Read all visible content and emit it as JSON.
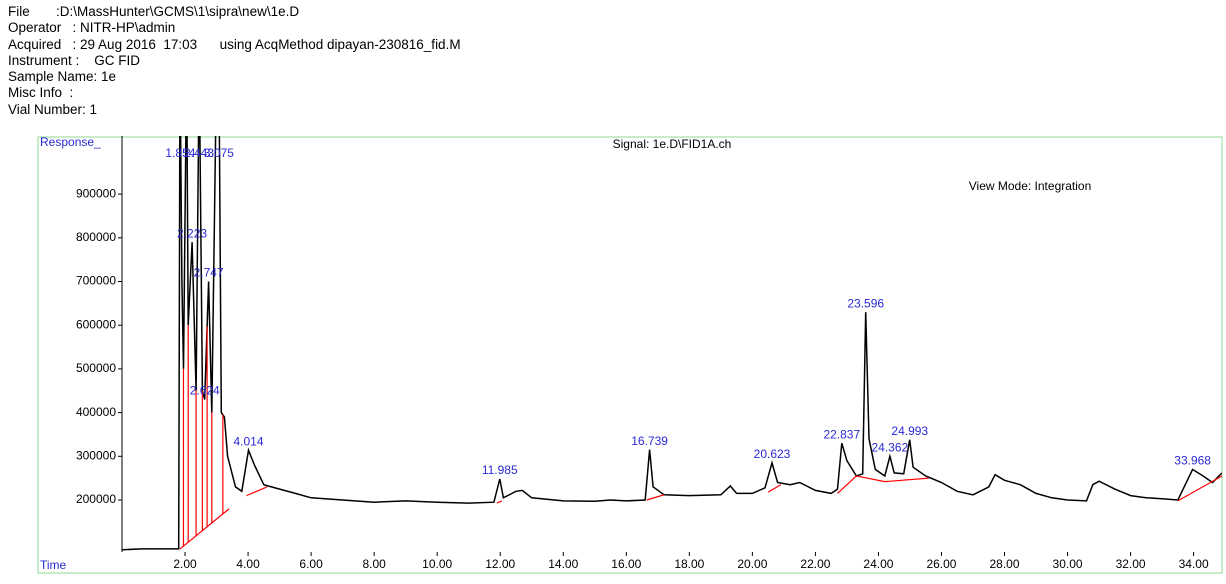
{
  "header": {
    "lines": [
      "File       :D:\\MassHunter\\GCMS\\1\\sipra\\new\\1e.D",
      "Operator   : NITR-HP\\admin",
      "Acquired   : 29 Aug 2016  17:03      using AcqMethod dipayan-230816_fid.M",
      "Instrument :    GC FID",
      "Sample Name: 1e",
      "Misc Info  :",
      "Vial Number: 1"
    ]
  },
  "chart_data": {
    "type": "line",
    "title": "Signal: 1e.D\\FID1A.ch",
    "annotation": "View Mode: Integration",
    "y_label": "Response_",
    "x_label": "Time",
    "color": "#000000",
    "baseline_color": "#ff0000",
    "label_color": "#2a2ad4",
    "xlim": [
      0,
      34.9
    ],
    "ylim": [
      81000,
      1033000
    ],
    "xticks": [
      {
        "value": 2,
        "label": "2.00"
      },
      {
        "value": 4,
        "label": "4.00"
      },
      {
        "value": 6,
        "label": "6.00"
      },
      {
        "value": 8,
        "label": "8.00"
      },
      {
        "value": 10,
        "label": "10.00"
      },
      {
        "value": 12,
        "label": "12.00"
      },
      {
        "value": 14,
        "label": "14.00"
      },
      {
        "value": 16,
        "label": "16.00"
      },
      {
        "value": 18,
        "label": "18.00"
      },
      {
        "value": 20,
        "label": "20.00"
      },
      {
        "value": 22,
        "label": "22.00"
      },
      {
        "value": 24,
        "label": "24.00"
      },
      {
        "value": 26,
        "label": "26.00"
      },
      {
        "value": 28,
        "label": "28.00"
      },
      {
        "value": 30,
        "label": "30.00"
      },
      {
        "value": 32,
        "label": "32.00"
      },
      {
        "value": 34,
        "label": "34.00"
      }
    ],
    "yticks": [
      200000,
      300000,
      400000,
      500000,
      600000,
      700000,
      800000,
      900000
    ],
    "x": [
      0,
      0.6,
      1.0,
      1.8,
      1.84,
      1.9,
      1.95,
      2.05,
      2.1,
      2.223,
      2.35,
      2.45,
      2.55,
      2.624,
      2.747,
      2.85,
      3.0,
      3.075,
      3.15,
      3.25,
      3.35,
      3.6,
      3.8,
      4.014,
      4.2,
      4.5,
      5.0,
      5.5,
      6.0,
      7.0,
      8.0,
      9.0,
      10.0,
      11.0,
      11.8,
      11.985,
      12.1,
      12.5,
      12.7,
      13.0,
      14.0,
      15.0,
      15.5,
      16.0,
      16.6,
      16.739,
      16.85,
      17.2,
      18.0,
      19.0,
      19.3,
      19.5,
      20.0,
      20.4,
      20.623,
      20.8,
      21.2,
      21.5,
      22.0,
      22.5,
      22.7,
      22.837,
      23.0,
      23.3,
      23.5,
      23.596,
      23.7,
      23.9,
      24.2,
      24.362,
      24.5,
      24.8,
      24.993,
      25.1,
      25.5,
      26.0,
      26.5,
      27.0,
      27.5,
      27.7,
      28.0,
      28.5,
      29.0,
      29.5,
      30.0,
      30.6,
      30.8,
      31.0,
      31.5,
      32.0,
      32.5,
      33.0,
      33.5,
      33.968,
      34.3,
      34.6,
      34.9
    ],
    "values": [
      86000,
      88000,
      88000,
      88000,
      1200000,
      700000,
      500000,
      1200000,
      600000,
      790000,
      450000,
      1200000,
      450000,
      430000,
      700000,
      400000,
      1200000,
      1200000,
      400000,
      390000,
      300000,
      230000,
      220000,
      314000,
      280000,
      235000,
      225000,
      215000,
      205000,
      200000,
      195000,
      198000,
      195000,
      193000,
      195000,
      248000,
      205000,
      220000,
      222000,
      205000,
      198000,
      197000,
      200000,
      198000,
      200000,
      315000,
      230000,
      212000,
      210000,
      212000,
      232000,
      215000,
      215000,
      228000,
      285000,
      240000,
      235000,
      240000,
      222000,
      215000,
      225000,
      330000,
      290000,
      255000,
      260000,
      630000,
      340000,
      270000,
      255000,
      300000,
      262000,
      260000,
      338000,
      275000,
      255000,
      240000,
      220000,
      212000,
      230000,
      258000,
      245000,
      235000,
      215000,
      205000,
      200000,
      198000,
      235000,
      243000,
      225000,
      210000,
      205000,
      203000,
      200000,
      270000,
      255000,
      240000,
      262000
    ],
    "baselines": [
      {
        "x": [
          1.84,
          3.4
        ],
        "values": [
          88000,
          180000
        ]
      },
      {
        "x": [
          3.95,
          4.6
        ],
        "values": [
          210000,
          230000
        ]
      },
      {
        "x": [
          11.9,
          12.05
        ],
        "values": [
          193000,
          198000
        ]
      },
      {
        "x": [
          16.65,
          17.2
        ],
        "values": [
          200000,
          212000
        ]
      },
      {
        "x": [
          20.5,
          20.9
        ],
        "values": [
          218000,
          235000
        ]
      },
      {
        "x": [
          22.7,
          23.3
        ],
        "values": [
          215000,
          255000
        ]
      },
      {
        "x": [
          23.3,
          24.2
        ],
        "values": [
          255000,
          242000
        ]
      },
      {
        "x": [
          24.2,
          25.6
        ],
        "values": [
          242000,
          250000
        ]
      },
      {
        "x": [
          33.5,
          34.9
        ],
        "values": [
          198000,
          255000
        ]
      }
    ],
    "drop_lines": [
      1.95,
      2.1,
      2.35,
      2.55,
      2.7,
      2.85,
      3.2
    ],
    "peaks": [
      1.854,
      2.443,
      3.075,
      2.223,
      2.747,
      2.624,
      4.014,
      11.985,
      16.739,
      20.623,
      22.837,
      23.596,
      24.362,
      24.993,
      33.968
    ]
  }
}
